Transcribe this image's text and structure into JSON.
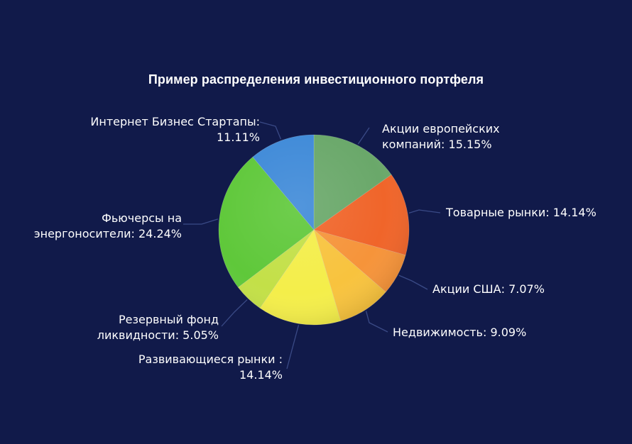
{
  "chart_data": {
    "type": "pie",
    "title": "Пример распределения инвестиционного портфеля",
    "slices": [
      {
        "label_lines": [
          "Акции европейских",
          "компаний: 15.15%"
        ],
        "value": 15.15,
        "color": "#6aa86a"
      },
      {
        "label_lines": [
          "Товарные рынки: 14.14%"
        ],
        "value": 14.14,
        "color": "#f0652a"
      },
      {
        "label_lines": [
          "Акции США: 7.07%"
        ],
        "value": 7.07,
        "color": "#f6943a"
      },
      {
        "label_lines": [
          "Недвижимость: 9.09%"
        ],
        "value": 9.09,
        "color": "#f8c33e"
      },
      {
        "label_lines": [
          "Развивающиеся рынки :",
          "14.14%"
        ],
        "value": 14.14,
        "color": "#f4ee4a"
      },
      {
        "label_lines": [
          "Резервный фонд",
          "ликвидности: 5.05%"
        ],
        "value": 5.05,
        "color": "#c3e048"
      },
      {
        "label_lines": [
          "Фьючерсы на",
          "энергоносители: 24.24%"
        ],
        "value": 24.24,
        "color": "#5fc83a"
      },
      {
        "label_lines": [
          "Интернет Бизнес Стартапы:",
          "11.11%"
        ],
        "value": 11.11,
        "color": "#3f8ad8"
      }
    ],
    "start_angle": "top",
    "direction": "clockwise",
    "legend": "none"
  }
}
